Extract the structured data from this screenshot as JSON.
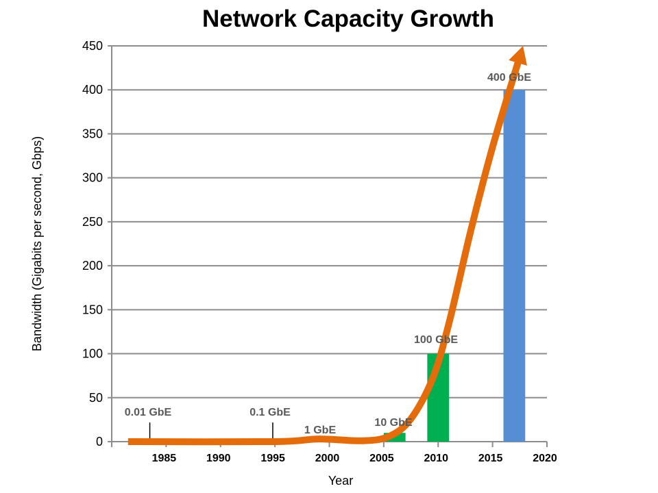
{
  "chart_data": {
    "type": "bar",
    "title": "Network Capacity Growth",
    "xlabel": "Year",
    "ylabel": "Bandwidth (Gigabits per second, Gbps)",
    "xlim": [
      1980,
      2020
    ],
    "ylim": [
      0,
      450
    ],
    "xticks": [
      "1985",
      "1990",
      "1995",
      "2000",
      "2005",
      "2010",
      "2015",
      "2020"
    ],
    "yticks": [
      "0",
      "50",
      "100",
      "150",
      "200",
      "250",
      "300",
      "350",
      "400",
      "450"
    ],
    "grid": true,
    "bars": [
      {
        "label": "10 GbE",
        "x_start": 2005,
        "x_end": 2007,
        "value": 10,
        "color": "#00B050"
      },
      {
        "label": "100 GbE",
        "x_start": 2009,
        "x_end": 2011,
        "value": 100,
        "color": "#00B050"
      },
      {
        "label": "400 GbE",
        "x_start": 2016,
        "x_end": 2018,
        "value": 400,
        "color": "#558ED5"
      }
    ],
    "markers": [
      {
        "label": "0.01 GbE",
        "year": 1983.5
      },
      {
        "label": "0.1 GbE",
        "year": 1994.8
      }
    ],
    "point_labels": [
      "1 GbE"
    ],
    "trend_arrow": {
      "color": "#E46C0A",
      "points": [
        [
          1981.5,
          0
        ],
        [
          1995,
          0
        ],
        [
          1999,
          3
        ],
        [
          2003,
          1
        ],
        [
          2005.5,
          6
        ],
        [
          2007.5,
          26
        ],
        [
          2009.5,
          72
        ],
        [
          2011,
          135
        ],
        [
          2013,
          240
        ],
        [
          2015,
          335
        ],
        [
          2017.8,
          450
        ]
      ]
    }
  }
}
